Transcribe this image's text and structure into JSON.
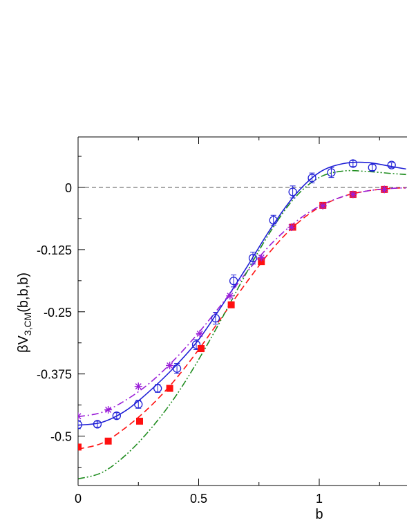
{
  "chart_data": {
    "type": "scatter",
    "title": "",
    "xlabel": "b",
    "ylabel": {
      "main": "βV",
      "sub": "3,CM",
      "suffix": "(b,b,b)"
    },
    "xlim": [
      0,
      1.36
    ],
    "ylim": [
      -0.6,
      0.1
    ],
    "x_ticks": [
      0,
      0.5,
      1
    ],
    "x_tick_labels": [
      "0",
      "0.5",
      "1"
    ],
    "y_ticks": [
      0,
      -0.125,
      -0.25,
      -0.375,
      -0.5
    ],
    "y_tick_labels": [
      "0",
      "-0.125",
      "-0.25",
      "-0.375",
      "-0.5"
    ],
    "grid": false,
    "reference_line": {
      "y": 0,
      "style": "dashed",
      "color": "#555555"
    },
    "series": [
      {
        "marker": "open-circle",
        "color": "#1f1fd6",
        "line_style": "solid",
        "points": [
          {
            "x": 0.0,
            "y": -0.477,
            "err": 0.008
          },
          {
            "x": 0.08,
            "y": -0.476,
            "err": 0.006
          },
          {
            "x": 0.16,
            "y": -0.459,
            "err": 0.006
          },
          {
            "x": 0.25,
            "y": -0.436,
            "err": 0.008
          },
          {
            "x": 0.33,
            "y": -0.404,
            "err": 0.008
          },
          {
            "x": 0.41,
            "y": -0.364,
            "err": 0.01
          },
          {
            "x": 0.49,
            "y": -0.316,
            "err": 0.01
          },
          {
            "x": 0.57,
            "y": -0.263,
            "err": 0.012
          },
          {
            "x": 0.645,
            "y": -0.188,
            "err": 0.012
          },
          {
            "x": 0.725,
            "y": -0.142,
            "err": 0.012
          },
          {
            "x": 0.81,
            "y": -0.066,
            "err": 0.01
          },
          {
            "x": 0.89,
            "y": -0.009,
            "err": 0.012
          },
          {
            "x": 0.97,
            "y": 0.019,
            "err": 0.01
          },
          {
            "x": 1.05,
            "y": 0.03,
            "err": 0.01
          },
          {
            "x": 1.14,
            "y": 0.048,
            "err": 0.006
          },
          {
            "x": 1.22,
            "y": 0.04,
            "err": 0.006
          },
          {
            "x": 1.3,
            "y": 0.045,
            "err": 0.005
          }
        ],
        "curve": [
          [
            0,
            -0.478
          ],
          [
            0.1,
            -0.472
          ],
          [
            0.2,
            -0.448
          ],
          [
            0.3,
            -0.408
          ],
          [
            0.4,
            -0.361
          ],
          [
            0.5,
            -0.306
          ],
          [
            0.6,
            -0.235
          ],
          [
            0.7,
            -0.16
          ],
          [
            0.8,
            -0.082
          ],
          [
            0.9,
            -0.015
          ],
          [
            1.0,
            0.03
          ],
          [
            1.1,
            0.048
          ],
          [
            1.2,
            0.05
          ],
          [
            1.3,
            0.042
          ],
          [
            1.36,
            0.037
          ]
        ]
      },
      {
        "marker": "filled-square",
        "color": "#ff1010",
        "line_style": "dashed",
        "points": [
          {
            "x": 0.0,
            "y": -0.522
          },
          {
            "x": 0.125,
            "y": -0.51
          },
          {
            "x": 0.255,
            "y": -0.47
          },
          {
            "x": 0.38,
            "y": -0.404
          },
          {
            "x": 0.51,
            "y": -0.324
          },
          {
            "x": 0.635,
            "y": -0.236
          },
          {
            "x": 0.76,
            "y": -0.149
          },
          {
            "x": 0.89,
            "y": -0.08
          },
          {
            "x": 1.015,
            "y": -0.036
          },
          {
            "x": 1.14,
            "y": -0.014
          },
          {
            "x": 1.27,
            "y": -0.004
          }
        ],
        "curve": [
          [
            0,
            -0.526
          ],
          [
            0.1,
            -0.514
          ],
          [
            0.2,
            -0.482
          ],
          [
            0.3,
            -0.44
          ],
          [
            0.4,
            -0.388
          ],
          [
            0.5,
            -0.326
          ],
          [
            0.6,
            -0.258
          ],
          [
            0.7,
            -0.19
          ],
          [
            0.8,
            -0.127
          ],
          [
            0.9,
            -0.076
          ],
          [
            1.0,
            -0.04
          ],
          [
            1.1,
            -0.018
          ],
          [
            1.2,
            -0.007
          ],
          [
            1.3,
            -0.002
          ],
          [
            1.36,
            -0.001
          ]
        ]
      },
      {
        "marker": "asterisk",
        "color": "#9a1ed8",
        "line_style": "dash-dot",
        "points": [
          {
            "x": 0.0,
            "y": -0.46
          },
          {
            "x": 0.125,
            "y": -0.447
          },
          {
            "x": 0.25,
            "y": -0.4
          },
          {
            "x": 0.38,
            "y": -0.358
          },
          {
            "x": 0.505,
            "y": -0.294
          },
          {
            "x": 0.63,
            "y": -0.218
          },
          {
            "x": 0.76,
            "y": -0.141
          },
          {
            "x": 0.885,
            "y": -0.08
          },
          {
            "x": 1.015,
            "y": -0.037
          },
          {
            "x": 1.14,
            "y": -0.014
          },
          {
            "x": 1.27,
            "y": -0.004
          }
        ],
        "curve": [
          [
            0,
            -0.461
          ],
          [
            0.1,
            -0.452
          ],
          [
            0.2,
            -0.427
          ],
          [
            0.3,
            -0.392
          ],
          [
            0.4,
            -0.346
          ],
          [
            0.5,
            -0.292
          ],
          [
            0.6,
            -0.232
          ],
          [
            0.7,
            -0.17
          ],
          [
            0.8,
            -0.114
          ],
          [
            0.9,
            -0.07
          ],
          [
            1.0,
            -0.038
          ],
          [
            1.1,
            -0.018
          ],
          [
            1.2,
            -0.007
          ],
          [
            1.3,
            -0.002
          ],
          [
            1.36,
            -0.001
          ]
        ]
      },
      {
        "marker": "none",
        "color": "#1e8c1e",
        "line_style": "dash-dot-dot",
        "points": [],
        "curve": [
          [
            0,
            -0.586
          ],
          [
            0.1,
            -0.573
          ],
          [
            0.2,
            -0.537
          ],
          [
            0.3,
            -0.486
          ],
          [
            0.4,
            -0.423
          ],
          [
            0.5,
            -0.346
          ],
          [
            0.6,
            -0.26
          ],
          [
            0.7,
            -0.17
          ],
          [
            0.8,
            -0.087
          ],
          [
            0.9,
            -0.02
          ],
          [
            1.0,
            0.02
          ],
          [
            1.1,
            0.033
          ],
          [
            1.2,
            0.032
          ],
          [
            1.3,
            0.028
          ],
          [
            1.36,
            0.026
          ]
        ]
      }
    ]
  }
}
